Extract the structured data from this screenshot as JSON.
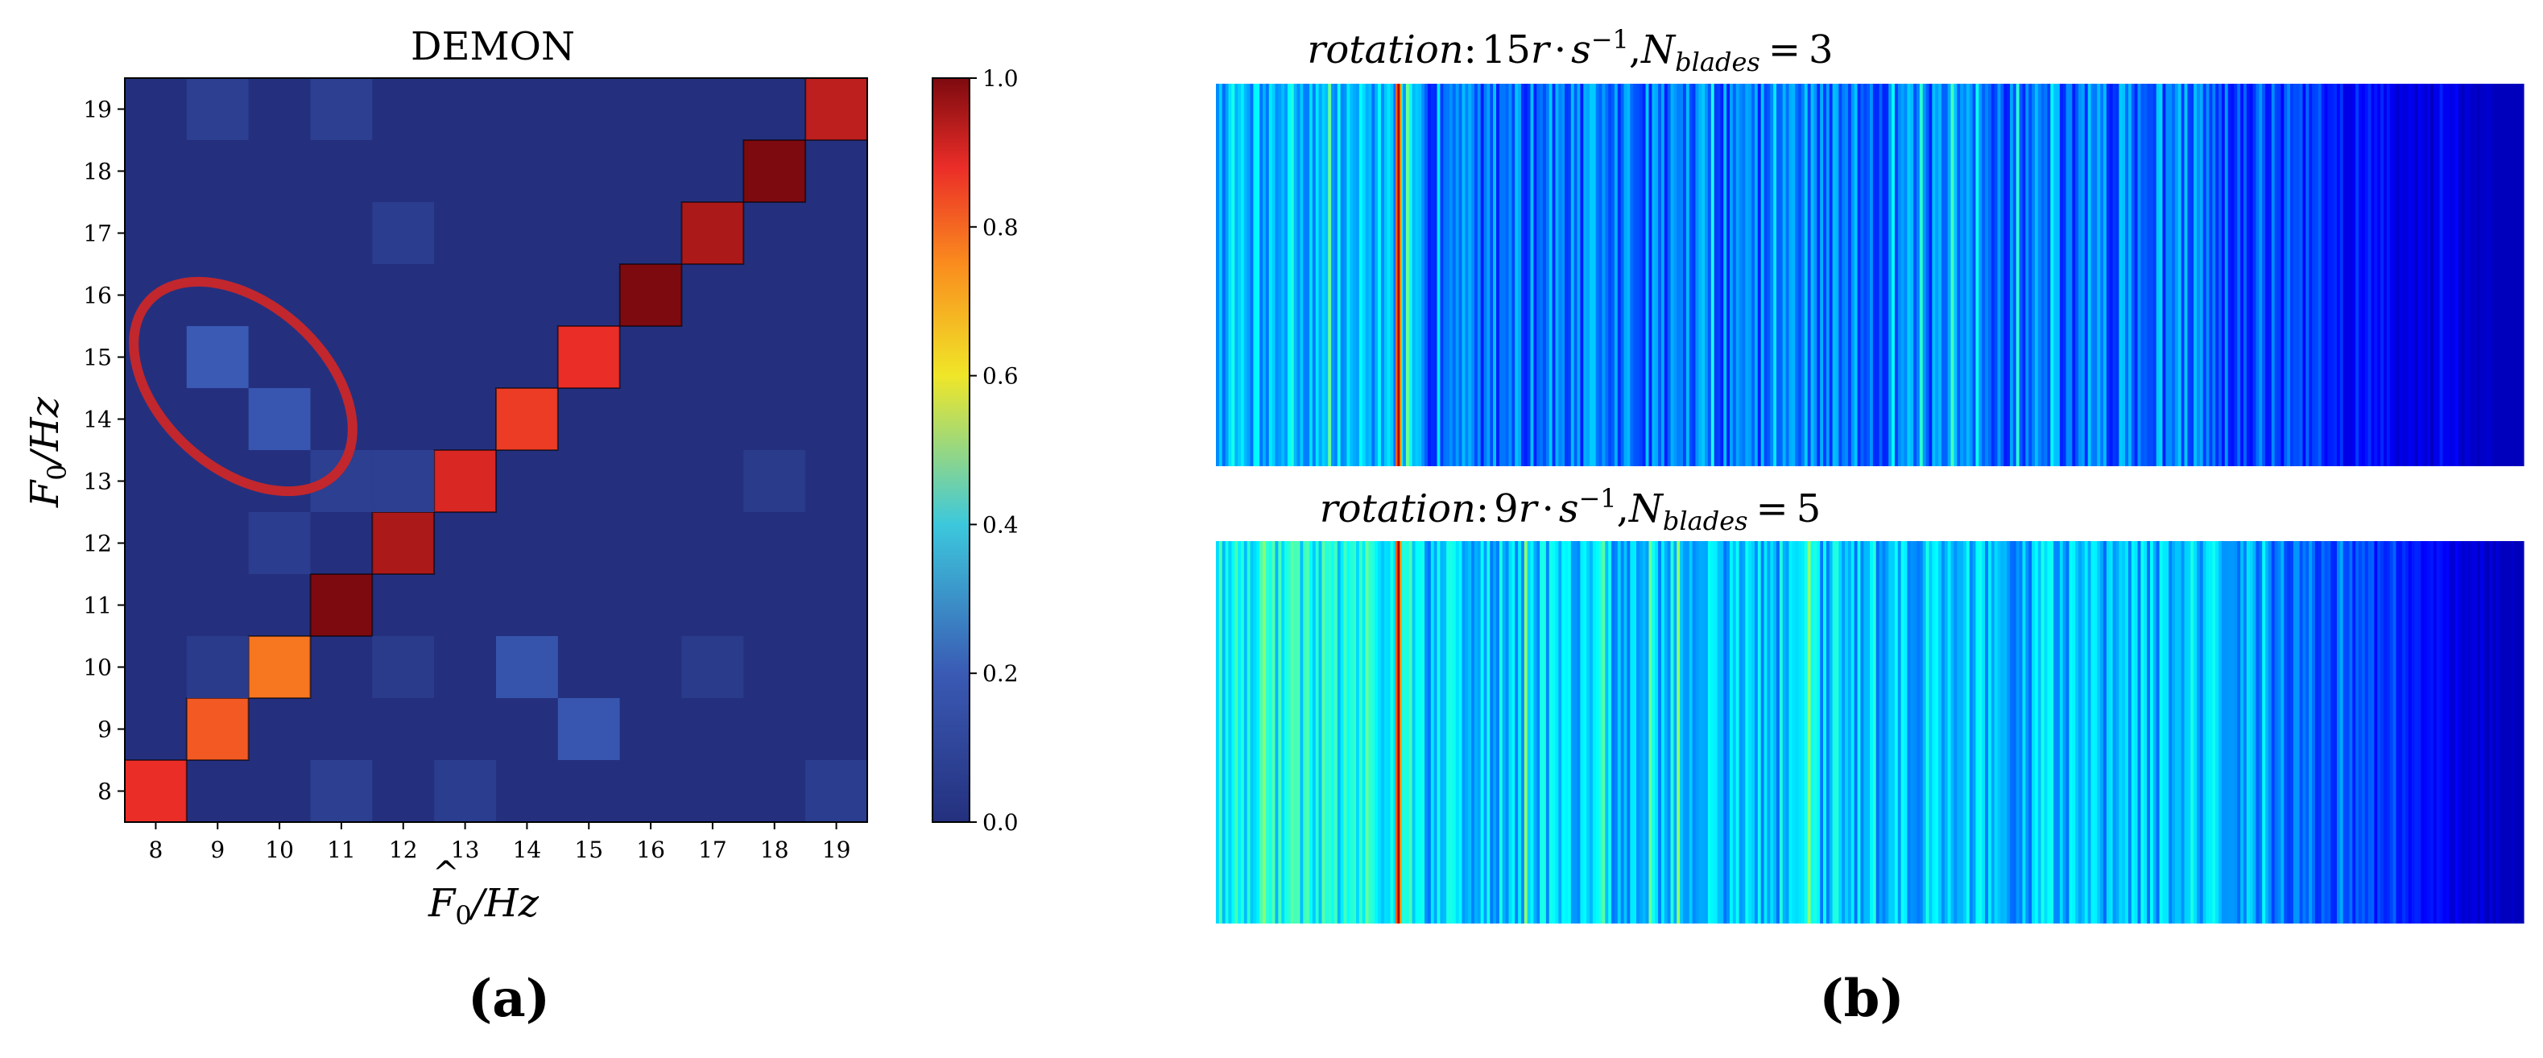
{
  "colors": {
    "jet": [
      "#00007f",
      "#0000ff",
      "#007fff",
      "#00ffff",
      "#7fff7f",
      "#ffff00",
      "#ff7f00",
      "#ff0000",
      "#7f0000"
    ],
    "heat_low": "#24307e",
    "ellipse": "#c1272d"
  },
  "chart_data": [
    {
      "type": "heatmap",
      "title": "DEMON",
      "xlabel": {
        "hat_symbol": "F",
        "subscript": "0",
        "rest": "/Hz"
      },
      "ylabel": {
        "symbol": "F",
        "subscript": "0",
        "rest": "/Hz"
      },
      "x_ticks": [
        "8",
        "9",
        "10",
        "11",
        "12",
        "13",
        "14",
        "15",
        "16",
        "17",
        "18",
        "19"
      ],
      "y_ticks": [
        "8",
        "9",
        "10",
        "11",
        "12",
        "13",
        "14",
        "15",
        "16",
        "17",
        "18",
        "19"
      ],
      "colorbar": {
        "range": [
          0.0,
          1.0
        ],
        "ticks": [
          "0.0",
          "0.2",
          "0.4",
          "0.6",
          "0.8",
          "1.0"
        ]
      },
      "cells": [
        {
          "x": 8,
          "y": 8,
          "value": 0.88
        },
        {
          "x": 9,
          "y": 9,
          "value": 0.82
        },
        {
          "x": 10,
          "y": 10,
          "value": 0.78
        },
        {
          "x": 11,
          "y": 11,
          "value": 1.0
        },
        {
          "x": 12,
          "y": 12,
          "value": 0.95
        },
        {
          "x": 13,
          "y": 13,
          "value": 0.9
        },
        {
          "x": 14,
          "y": 14,
          "value": 0.86
        },
        {
          "x": 15,
          "y": 15,
          "value": 0.88
        },
        {
          "x": 16,
          "y": 16,
          "value": 1.0
        },
        {
          "x": 17,
          "y": 17,
          "value": 0.95
        },
        {
          "x": 18,
          "y": 18,
          "value": 1.0
        },
        {
          "x": 19,
          "y": 19,
          "value": 0.93
        },
        {
          "x": 9,
          "y": 15,
          "value": 0.2
        },
        {
          "x": 10,
          "y": 14,
          "value": 0.18
        },
        {
          "x": 14,
          "y": 10,
          "value": 0.17
        },
        {
          "x": 15,
          "y": 9,
          "value": 0.18
        },
        {
          "x": 9,
          "y": 19,
          "value": 0.07
        },
        {
          "x": 11,
          "y": 19,
          "value": 0.07
        },
        {
          "x": 12,
          "y": 17,
          "value": 0.06
        },
        {
          "x": 10,
          "y": 12,
          "value": 0.06
        },
        {
          "x": 11,
          "y": 13,
          "value": 0.07
        },
        {
          "x": 12,
          "y": 13,
          "value": 0.07
        },
        {
          "x": 18,
          "y": 13,
          "value": 0.05
        },
        {
          "x": 9,
          "y": 10,
          "value": 0.05
        },
        {
          "x": 12,
          "y": 10,
          "value": 0.05
        },
        {
          "x": 17,
          "y": 10,
          "value": 0.05
        },
        {
          "x": 11,
          "y": 8,
          "value": 0.07
        },
        {
          "x": 13,
          "y": 8,
          "value": 0.06
        },
        {
          "x": 19,
          "y": 8,
          "value": 0.06
        }
      ],
      "annotation": {
        "type": "ellipse",
        "encloses": [
          {
            "x": 9,
            "y": 15
          },
          {
            "x": 10,
            "y": 14
          }
        ]
      },
      "panel_label": "(a)"
    },
    {
      "type": "spectrogram",
      "title": {
        "word": "rotation",
        "colon": ":",
        "number": "15",
        "r": "r",
        "dot": "·",
        "s": "s",
        "exp": "−1",
        "comma": ",",
        "n_sym": "N",
        "n_sub": "blades",
        "equals": "=",
        "n_val": "3"
      },
      "strong_line_position": 0.045,
      "base_intensity": 0.22,
      "panel_label": "(b)"
    },
    {
      "type": "spectrogram",
      "title": {
        "word": "rotation",
        "colon": ":",
        "number": "9",
        "r": "r",
        "dot": "·",
        "s": "s",
        "exp": "−1",
        "comma": ",",
        "n_sym": "N",
        "n_sub": "blades",
        "equals": "=",
        "n_val": "5"
      },
      "strong_line_position": 0.045,
      "base_intensity": 0.3
    }
  ]
}
